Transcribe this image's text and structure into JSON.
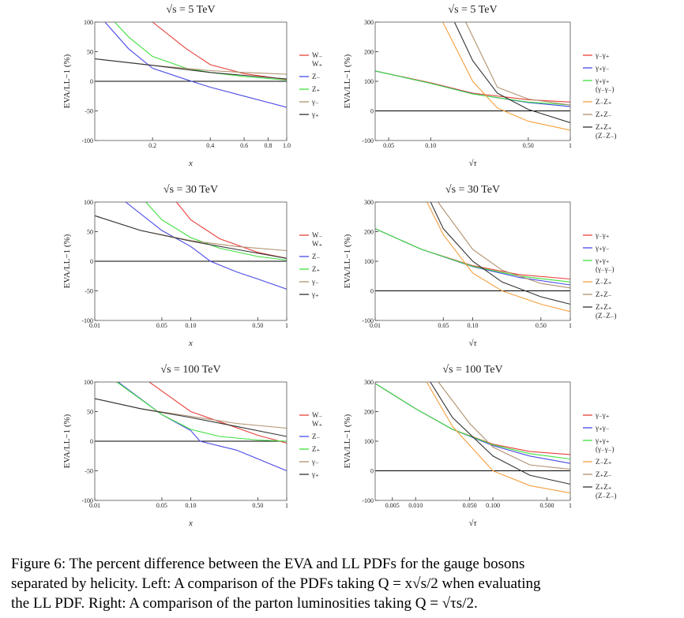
{
  "chart_data": [
    {
      "type": "line",
      "title": "√s = 5 TeV",
      "xlabel": "x",
      "ylabel": "EVA/LL−1 (%)",
      "xscale": "log",
      "xlim": [
        0.1,
        1
      ],
      "xticks": [
        0.2,
        0.4,
        0.6,
        0.8,
        {
          "value": 1,
          "label": "1.0"
        }
      ],
      "ylim": [
        -100,
        100
      ],
      "yticks": [
        -100,
        -50,
        0,
        50,
        100
      ],
      "hline": 0,
      "series": [
        {
          "name": "W₋\nW₊",
          "color": "#e8413c",
          "x": [
            0.2,
            0.3,
            0.4,
            0.6,
            1
          ],
          "values": [
            100,
            55,
            28,
            13,
            3
          ]
        },
        {
          "name": "Z₋",
          "color": "#4a4ae8",
          "x": [
            0.113,
            0.15,
            0.2,
            0.3,
            0.4,
            0.6,
            1
          ],
          "values": [
            100,
            55,
            22,
            3,
            -10,
            -25,
            -44
          ]
        },
        {
          "name": "Z₊",
          "color": "#3ee03e",
          "x": [
            0.127,
            0.15,
            0.2,
            0.3,
            0.4,
            0.6,
            1
          ],
          "values": [
            100,
            75,
            42,
            22,
            15,
            8,
            2
          ]
        },
        {
          "name": "γ₋",
          "color": "#b0906e",
          "x": [
            0.1,
            0.2,
            0.4,
            0.6,
            1
          ],
          "values": [
            38,
            27,
            18,
            15,
            12
          ]
        },
        {
          "name": "γ₊",
          "color": "#333333",
          "x": [
            0.1,
            0.2,
            0.4,
            0.6,
            1
          ],
          "values": [
            38,
            27,
            15,
            10,
            4
          ]
        }
      ]
    },
    {
      "type": "line",
      "title": "√s = 5 TeV",
      "xlabel": "√τ",
      "ylabel": "EVA/LL−1 (%)",
      "xscale": "log",
      "xlim": [
        0.04,
        1
      ],
      "xticks": [
        0.05,
        {
          "value": 0.1,
          "label": "0.10"
        },
        {
          "value": 0.5,
          "label": "0.50"
        },
        1
      ],
      "ylim": [
        -100,
        300
      ],
      "yticks": [
        -100,
        0,
        100,
        200,
        300
      ],
      "hline": 0,
      "series": [
        {
          "name": "γ₋γ₊",
          "color": "#e8413c",
          "x": [
            0.04,
            0.1,
            0.2,
            0.5,
            1
          ],
          "values": [
            135,
            95,
            60,
            38,
            30
          ]
        },
        {
          "name": "γ₊γ₋",
          "color": "#4a4ae8",
          "x": [
            0.04,
            0.1,
            0.2,
            0.5,
            1
          ],
          "values": [
            135,
            93,
            58,
            28,
            15
          ]
        },
        {
          "name": "γ₊γ₊\n(γ₋γ₋)",
          "color": "#3ee03e",
          "x": [
            0.04,
            0.1,
            0.2,
            0.5,
            1
          ],
          "values": [
            135,
            93,
            57,
            30,
            20
          ]
        },
        {
          "name": "Z₋Z₊",
          "color": "#f5a040",
          "x": [
            0.122,
            0.2,
            0.3,
            0.5,
            1
          ],
          "values": [
            300,
            100,
            10,
            -35,
            -65
          ]
        },
        {
          "name": "Z₊Z₋",
          "color": "#b0906e",
          "x": [
            0.178,
            0.3,
            0.5,
            1
          ],
          "values": [
            300,
            80,
            40,
            20
          ]
        },
        {
          "name": "Z₊Z₊\n(Z₋Z₋)",
          "color": "#333333",
          "x": [
            0.148,
            0.2,
            0.3,
            0.5,
            1
          ],
          "values": [
            300,
            170,
            60,
            5,
            -40
          ]
        }
      ]
    },
    {
      "type": "line",
      "title": "√s = 30 TeV",
      "xlabel": "x",
      "ylabel": "EVA/LL−1 (%)",
      "xscale": "log",
      "xlim": [
        0.01,
        1
      ],
      "xticks": [
        0.01,
        0.05,
        {
          "value": 0.1,
          "label": "0.10"
        },
        {
          "value": 0.5,
          "label": "0.50"
        },
        1
      ],
      "ylim": [
        -100,
        100
      ],
      "yticks": [
        -100,
        -50,
        0,
        50,
        100
      ],
      "hline": 0,
      "series": [
        {
          "name": "W₋\nW₊",
          "color": "#e8413c",
          "x": [
            0.071,
            0.1,
            0.2,
            0.5,
            1
          ],
          "values": [
            100,
            70,
            38,
            15,
            5
          ]
        },
        {
          "name": "Z₋",
          "color": "#4a4ae8",
          "x": [
            0.021,
            0.05,
            0.1,
            0.16,
            0.3,
            0.5,
            1
          ],
          "values": [
            100,
            52,
            25,
            0,
            -18,
            -30,
            -47
          ]
        },
        {
          "name": "Z₊",
          "color": "#3ee03e",
          "x": [
            0.034,
            0.05,
            0.1,
            0.2,
            0.5,
            1
          ],
          "values": [
            100,
            70,
            40,
            22,
            8,
            2
          ]
        },
        {
          "name": "γ₋",
          "color": "#b0906e",
          "x": [
            0.01,
            0.03,
            0.1,
            0.3,
            1
          ],
          "values": [
            77,
            52,
            35,
            25,
            18
          ]
        },
        {
          "name": "γ₊",
          "color": "#333333",
          "x": [
            0.01,
            0.03,
            0.1,
            0.3,
            1
          ],
          "values": [
            77,
            52,
            34,
            20,
            5
          ]
        }
      ]
    },
    {
      "type": "line",
      "title": "√s = 30 TeV",
      "xlabel": "√τ",
      "ylabel": "EVA/LL−1 (%)",
      "xscale": "log",
      "xlim": [
        0.01,
        1
      ],
      "xticks": [
        0.01,
        0.05,
        {
          "value": 0.1,
          "label": "0.10"
        },
        {
          "value": 0.5,
          "label": "0.50"
        },
        1
      ],
      "ylim": [
        -100,
        300
      ],
      "yticks": [
        -100,
        0,
        100,
        200,
        300
      ],
      "hline": 0,
      "series": [
        {
          "name": "γ₋γ₊",
          "color": "#e8413c",
          "x": [
            0.01,
            0.03,
            0.1,
            0.3,
            1
          ],
          "values": [
            210,
            140,
            85,
            55,
            40
          ]
        },
        {
          "name": "γ₊γ₋",
          "color": "#4a4ae8",
          "x": [
            0.01,
            0.03,
            0.1,
            0.3,
            1
          ],
          "values": [
            210,
            140,
            82,
            45,
            20
          ]
        },
        {
          "name": "γ₊γ₊\n(γ₋γ₋)",
          "color": "#3ee03e",
          "x": [
            0.01,
            0.03,
            0.1,
            0.3,
            1
          ],
          "values": [
            210,
            140,
            83,
            50,
            30
          ]
        },
        {
          "name": "Z₋Z₊",
          "color": "#f5a040",
          "x": [
            0.034,
            0.05,
            0.1,
            0.2,
            0.5,
            1
          ],
          "values": [
            300,
            190,
            60,
            0,
            -45,
            -70
          ]
        },
        {
          "name": "Z₊Z₋",
          "color": "#b0906e",
          "x": [
            0.044,
            0.1,
            0.2,
            0.5,
            1
          ],
          "values": [
            300,
            140,
            70,
            25,
            10
          ]
        },
        {
          "name": "Z₊Z₊\n(Z₋Z₋)",
          "color": "#333333",
          "x": [
            0.037,
            0.05,
            0.1,
            0.2,
            0.5,
            1
          ],
          "values": [
            300,
            210,
            100,
            30,
            -20,
            -45
          ]
        }
      ]
    },
    {
      "type": "line",
      "title": "√s = 100 TeV",
      "xlabel": "x",
      "ylabel": "EVA/LL−1 (%)",
      "xscale": "log",
      "xlim": [
        0.01,
        1
      ],
      "xticks": [
        0.01,
        0.05,
        {
          "value": 0.1,
          "label": "0.10"
        },
        {
          "value": 0.5,
          "label": "0.50"
        },
        1
      ],
      "ylim": [
        -100,
        100
      ],
      "yticks": [
        -100,
        -50,
        0,
        50,
        100
      ],
      "hline": 0,
      "series": [
        {
          "name": "W₋\nW₊",
          "color": "#e8413c",
          "x": [
            0.037,
            0.1,
            0.2,
            0.5,
            1
          ],
          "values": [
            100,
            50,
            33,
            10,
            -3
          ]
        },
        {
          "name": "Z₋",
          "color": "#4a4ae8",
          "x": [
            0.0175,
            0.05,
            0.1,
            0.125,
            0.3,
            1
          ],
          "values": [
            100,
            45,
            18,
            0,
            -15,
            -50
          ]
        },
        {
          "name": "Z₊",
          "color": "#3ee03e",
          "x": [
            0.017,
            0.05,
            0.1,
            0.2,
            0.5,
            1
          ],
          "values": [
            100,
            45,
            20,
            8,
            2,
            0
          ]
        },
        {
          "name": "γ₋",
          "color": "#b0906e",
          "x": [
            0.01,
            0.03,
            0.1,
            0.3,
            1
          ],
          "values": [
            72,
            55,
            42,
            30,
            22
          ]
        },
        {
          "name": "γ₊",
          "color": "#333333",
          "x": [
            0.01,
            0.03,
            0.1,
            0.3,
            1
          ],
          "values": [
            72,
            55,
            40,
            25,
            8
          ]
        }
      ]
    },
    {
      "type": "line",
      "title": "√s = 100 TeV",
      "xlabel": "√τ",
      "ylabel": "EVA/LL−1 (%)",
      "xscale": "log",
      "xlim": [
        0.003,
        1
      ],
      "xticks": [
        0.005,
        {
          "value": 0.01,
          "label": "0.010"
        },
        {
          "value": 0.05,
          "label": "0.050"
        },
        {
          "value": 0.1,
          "label": "0.100"
        },
        {
          "value": 0.5,
          "label": "0.500"
        },
        1
      ],
      "ylim": [
        -100,
        300
      ],
      "yticks": [
        -100,
        0,
        100,
        200,
        300
      ],
      "hline": 0,
      "series": [
        {
          "name": "γ₋γ₊",
          "color": "#e8413c",
          "x": [
            0.003,
            0.01,
            0.03,
            0.1,
            0.3,
            1
          ],
          "values": [
            295,
            210,
            140,
            90,
            65,
            55
          ]
        },
        {
          "name": "γ₊γ₋",
          "color": "#4a4ae8",
          "x": [
            0.003,
            0.01,
            0.03,
            0.1,
            0.3,
            1
          ],
          "values": [
            295,
            210,
            140,
            85,
            50,
            25
          ]
        },
        {
          "name": "γ₊γ₊\n(γ₋γ₋)",
          "color": "#3ee03e",
          "x": [
            0.003,
            0.01,
            0.03,
            0.1,
            0.3,
            1
          ],
          "values": [
            295,
            210,
            140,
            88,
            58,
            40
          ]
        },
        {
          "name": "Z₋Z₊",
          "color": "#f5a040",
          "x": [
            0.0139,
            0.03,
            0.1,
            0.3,
            1
          ],
          "values": [
            300,
            150,
            0,
            -50,
            -75
          ]
        },
        {
          "name": "Z₊Z₋",
          "color": "#b0906e",
          "x": [
            0.0197,
            0.05,
            0.1,
            0.3,
            1
          ],
          "values": [
            300,
            160,
            80,
            20,
            5
          ]
        },
        {
          "name": "Z₊Z₊\n(Z₋Z₋)",
          "color": "#333333",
          "x": [
            0.0155,
            0.03,
            0.1,
            0.3,
            1
          ],
          "values": [
            300,
            180,
            50,
            -15,
            -45
          ]
        }
      ]
    }
  ],
  "caption": [
    "Figure 6:  The percent difference between the EVA and LL PDFs for the gauge bosons",
    "separated by helicity. Left: A comparison of the PDFs taking Q = x√s/2 when evaluating",
    "the LL PDF. Right: A comparison of the parton luminosities taking Q = √τs/2."
  ]
}
